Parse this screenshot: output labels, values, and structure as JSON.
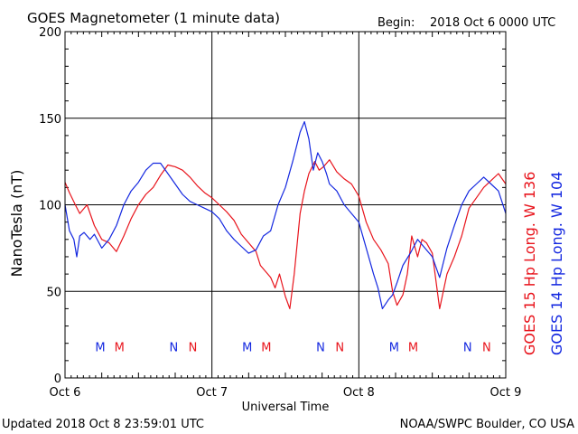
{
  "header": {
    "title": "GOES Magnetometer (1 minute data)",
    "begin_label": "Begin:",
    "begin_value": "2018 Oct 6 0000 UTC"
  },
  "footer": {
    "updated": "Updated 2018 Oct  8 23:59:01 UTC",
    "credit": "NOAA/SWPC Boulder, CO USA"
  },
  "colors": {
    "goes15": "#e8141c",
    "goes14": "#1428e0",
    "axis": "#000000"
  },
  "chart_data": {
    "type": "line",
    "title": "GOES Magnetometer (1 minute data)",
    "xlabel": "Universal Time",
    "ylabel": "NanoTesla (nT)",
    "xlim": [
      0,
      3
    ],
    "ylim": [
      0,
      200
    ],
    "x_ticks": [
      {
        "value": 0,
        "label": "Oct 6"
      },
      {
        "value": 1,
        "label": "Oct 7"
      },
      {
        "value": 2,
        "label": "Oct 8"
      },
      {
        "value": 3,
        "label": "Oct 9"
      }
    ],
    "y_ticks": [
      {
        "value": 0,
        "label": "0"
      },
      {
        "value": 50,
        "label": "50"
      },
      {
        "value": 100,
        "label": "100"
      },
      {
        "value": 150,
        "label": "150"
      },
      {
        "value": 200,
        "label": "200"
      }
    ],
    "grid": true,
    "legend_position": "right-vertical",
    "series": [
      {
        "name": "GOES 15 Hp  Long. W 136",
        "color": "#e8141c",
        "x": [
          0,
          0.03,
          0.07,
          0.1,
          0.15,
          0.2,
          0.25,
          0.3,
          0.35,
          0.4,
          0.45,
          0.5,
          0.55,
          0.6,
          0.65,
          0.7,
          0.75,
          0.8,
          0.85,
          0.9,
          0.95,
          1.0,
          1.05,
          1.1,
          1.15,
          1.2,
          1.25,
          1.3,
          1.33,
          1.36,
          1.4,
          1.43,
          1.46,
          1.5,
          1.53,
          1.56,
          1.6,
          1.63,
          1.66,
          1.7,
          1.73,
          1.76,
          1.8,
          1.85,
          1.9,
          1.95,
          2.0,
          2.05,
          2.1,
          2.15,
          2.2,
          2.23,
          2.26,
          2.3,
          2.33,
          2.36,
          2.4,
          2.43,
          2.46,
          2.5,
          2.55,
          2.6,
          2.65,
          2.7,
          2.75,
          2.8,
          2.85,
          2.9,
          2.95,
          3.0
        ],
        "values": [
          113,
          107,
          100,
          95,
          100,
          88,
          80,
          78,
          73,
          82,
          92,
          100,
          106,
          110,
          117,
          123,
          122,
          120,
          116,
          111,
          107,
          104,
          100,
          96,
          91,
          83,
          78,
          73,
          65,
          62,
          58,
          52,
          60,
          47,
          40,
          60,
          95,
          108,
          118,
          125,
          120,
          122,
          126,
          119,
          115,
          112,
          105,
          90,
          80,
          74,
          66,
          50,
          42,
          48,
          60,
          82,
          70,
          80,
          78,
          72,
          40,
          60,
          70,
          82,
          98,
          104,
          110,
          114,
          118,
          112
        ]
      },
      {
        "name": "GOES 14 Hp  Long. W 104",
        "color": "#1428e0",
        "x": [
          0,
          0.03,
          0.06,
          0.08,
          0.1,
          0.13,
          0.17,
          0.2,
          0.25,
          0.3,
          0.35,
          0.4,
          0.45,
          0.5,
          0.55,
          0.6,
          0.65,
          0.7,
          0.75,
          0.8,
          0.85,
          0.9,
          0.95,
          1.0,
          1.05,
          1.1,
          1.15,
          1.2,
          1.25,
          1.3,
          1.35,
          1.4,
          1.45,
          1.5,
          1.55,
          1.6,
          1.63,
          1.66,
          1.69,
          1.72,
          1.75,
          1.78,
          1.8,
          1.85,
          1.9,
          1.95,
          2.0,
          2.05,
          2.1,
          2.13,
          2.16,
          2.2,
          2.23,
          2.26,
          2.3,
          2.35,
          2.4,
          2.45,
          2.5,
          2.55,
          2.6,
          2.65,
          2.7,
          2.75,
          2.8,
          2.85,
          2.9,
          2.95,
          3.0
        ],
        "values": [
          100,
          85,
          80,
          70,
          82,
          84,
          80,
          83,
          75,
          80,
          88,
          100,
          108,
          113,
          120,
          124,
          124,
          118,
          112,
          106,
          102,
          100,
          98,
          96,
          92,
          85,
          80,
          76,
          72,
          74,
          82,
          85,
          100,
          110,
          125,
          142,
          148,
          138,
          120,
          130,
          125,
          118,
          112,
          108,
          100,
          95,
          90,
          75,
          60,
          52,
          40,
          45,
          48,
          55,
          65,
          72,
          80,
          75,
          70,
          58,
          75,
          88,
          100,
          108,
          112,
          116,
          112,
          108,
          95
        ]
      }
    ],
    "annotations": [
      {
        "text": "M",
        "x": 0.24,
        "y": 18,
        "series": "goes14"
      },
      {
        "text": "M",
        "x": 0.37,
        "y": 18,
        "series": "goes15"
      },
      {
        "text": "N",
        "x": 0.74,
        "y": 18,
        "series": "goes14"
      },
      {
        "text": "N",
        "x": 0.87,
        "y": 18,
        "series": "goes15"
      },
      {
        "text": "M",
        "x": 1.24,
        "y": 18,
        "series": "goes14"
      },
      {
        "text": "M",
        "x": 1.37,
        "y": 18,
        "series": "goes15"
      },
      {
        "text": "N",
        "x": 1.74,
        "y": 18,
        "series": "goes14"
      },
      {
        "text": "N",
        "x": 1.87,
        "y": 18,
        "series": "goes15"
      },
      {
        "text": "M",
        "x": 2.24,
        "y": 18,
        "series": "goes14"
      },
      {
        "text": "M",
        "x": 2.37,
        "y": 18,
        "series": "goes15"
      },
      {
        "text": "N",
        "x": 2.74,
        "y": 18,
        "series": "goes14"
      },
      {
        "text": "N",
        "x": 2.87,
        "y": 18,
        "series": "goes15"
      }
    ]
  }
}
